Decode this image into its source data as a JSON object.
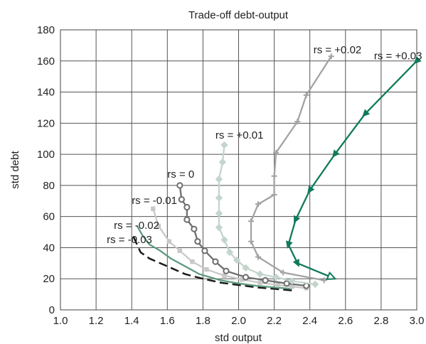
{
  "chart_data": {
    "type": "line",
    "title": "Trade-off debt-output",
    "xlabel": "std output",
    "ylabel": "std debt",
    "xlim": [
      1.0,
      3.0
    ],
    "ylim": [
      0,
      180
    ],
    "xticks": [
      "1.0",
      "1.2",
      "1.4",
      "1.6",
      "1.8",
      "2.0",
      "2.2",
      "2.4",
      "2.6",
      "2.8",
      "3.0"
    ],
    "yticks": [
      "0",
      "20",
      "40",
      "60",
      "80",
      "100",
      "120",
      "140",
      "160",
      "180"
    ],
    "grid": true,
    "series": [
      {
        "name": "rs = -0.03",
        "color": "#1a1a1a",
        "dash": true,
        "marker": "none",
        "points": [
          [
            1.41,
            47
          ],
          [
            1.45,
            37
          ],
          [
            1.5,
            33
          ],
          [
            1.6,
            28
          ],
          [
            1.7,
            23
          ],
          [
            1.8,
            20
          ],
          [
            1.9,
            17.5
          ],
          [
            2.0,
            16
          ],
          [
            2.1,
            14.5
          ],
          [
            2.2,
            13.5
          ],
          [
            2.3,
            12.5
          ]
        ]
      },
      {
        "name": "rs = -0.02",
        "color": "#5e9a7e",
        "marker": "none",
        "points": [
          [
            1.43,
            54
          ],
          [
            1.46,
            48
          ],
          [
            1.5,
            42
          ],
          [
            1.56,
            38
          ],
          [
            1.62,
            33
          ],
          [
            1.7,
            28
          ],
          [
            1.78,
            23
          ],
          [
            1.9,
            19
          ],
          [
            2.0,
            17
          ],
          [
            2.1,
            15.5
          ],
          [
            2.2,
            14.5
          ],
          [
            2.3,
            13.5
          ]
        ]
      },
      {
        "name": "rs = -0.01",
        "color": "#c8c8c8",
        "marker": "square",
        "points": [
          [
            1.52,
            65
          ],
          [
            1.55,
            54
          ],
          [
            1.61,
            44
          ],
          [
            1.67,
            38
          ],
          [
            1.74,
            31
          ],
          [
            1.82,
            26
          ],
          [
            1.92,
            22
          ],
          [
            2.02,
            19.5
          ],
          [
            2.12,
            17.5
          ],
          [
            2.22,
            16
          ],
          [
            2.3,
            15
          ],
          [
            2.38,
            14
          ]
        ]
      },
      {
        "name": "rs = 0",
        "color": "#6e6e6e",
        "marker": "circle",
        "points": [
          [
            1.67,
            80
          ],
          [
            1.68,
            71
          ],
          [
            1.71,
            66
          ],
          [
            1.71,
            58
          ],
          [
            1.75,
            52
          ],
          [
            1.77,
            44
          ],
          [
            1.81,
            38
          ],
          [
            1.87,
            31
          ],
          [
            1.93,
            25
          ],
          [
            2.04,
            21
          ],
          [
            2.15,
            19
          ],
          [
            2.27,
            17
          ],
          [
            2.38,
            15.5
          ]
        ]
      },
      {
        "name": "rs = +0.01",
        "color": "#c3d5cc",
        "marker": "diamond",
        "points": [
          [
            1.92,
            106
          ],
          [
            1.91,
            95
          ],
          [
            1.89,
            84
          ],
          [
            1.89,
            72
          ],
          [
            1.89,
            62
          ],
          [
            1.89,
            53
          ],
          [
            1.92,
            45
          ],
          [
            1.95,
            37
          ],
          [
            1.99,
            32
          ],
          [
            2.04,
            27
          ],
          [
            2.12,
            23
          ],
          [
            2.21,
            21
          ],
          [
            2.3,
            18.5
          ],
          [
            2.43,
            16.5
          ]
        ]
      },
      {
        "name": "rs = +0.02",
        "color": "#a3a3a3",
        "marker": "plus",
        "points": [
          [
            2.52,
            163
          ],
          [
            2.38,
            138
          ],
          [
            2.33,
            121
          ],
          [
            2.21,
            101
          ],
          [
            2.2,
            86
          ],
          [
            2.2,
            74
          ],
          [
            2.11,
            68
          ],
          [
            2.07,
            57
          ],
          [
            2.07,
            44
          ],
          [
            2.11,
            34
          ],
          [
            2.25,
            24
          ],
          [
            2.48,
            19
          ]
        ]
      },
      {
        "name": "rs = +0.03",
        "color": "#0f7a5b",
        "marker": "triangle",
        "points": [
          [
            3.0,
            160
          ],
          [
            2.71,
            126
          ],
          [
            2.54,
            100
          ],
          [
            2.4,
            77
          ],
          [
            2.32,
            58
          ],
          [
            2.28,
            42
          ],
          [
            2.33,
            30
          ],
          [
            2.52,
            21
          ]
        ]
      }
    ],
    "annotations": [
      {
        "text": "rs = +0.02",
        "x": 2.42,
        "y": 165
      },
      {
        "text": "rs = +0.03",
        "x": 2.76,
        "y": 161
      },
      {
        "text": "rs = +0.01",
        "x": 1.87,
        "y": 110
      },
      {
        "text": "rs = 0",
        "x": 1.6,
        "y": 85
      },
      {
        "text": "rs = -0.01",
        "x": 1.4,
        "y": 68
      },
      {
        "text": "rs = -0.02",
        "x": 1.3,
        "y": 52
      },
      {
        "text": "rs = -0.03",
        "x": 1.26,
        "y": 43
      }
    ]
  }
}
